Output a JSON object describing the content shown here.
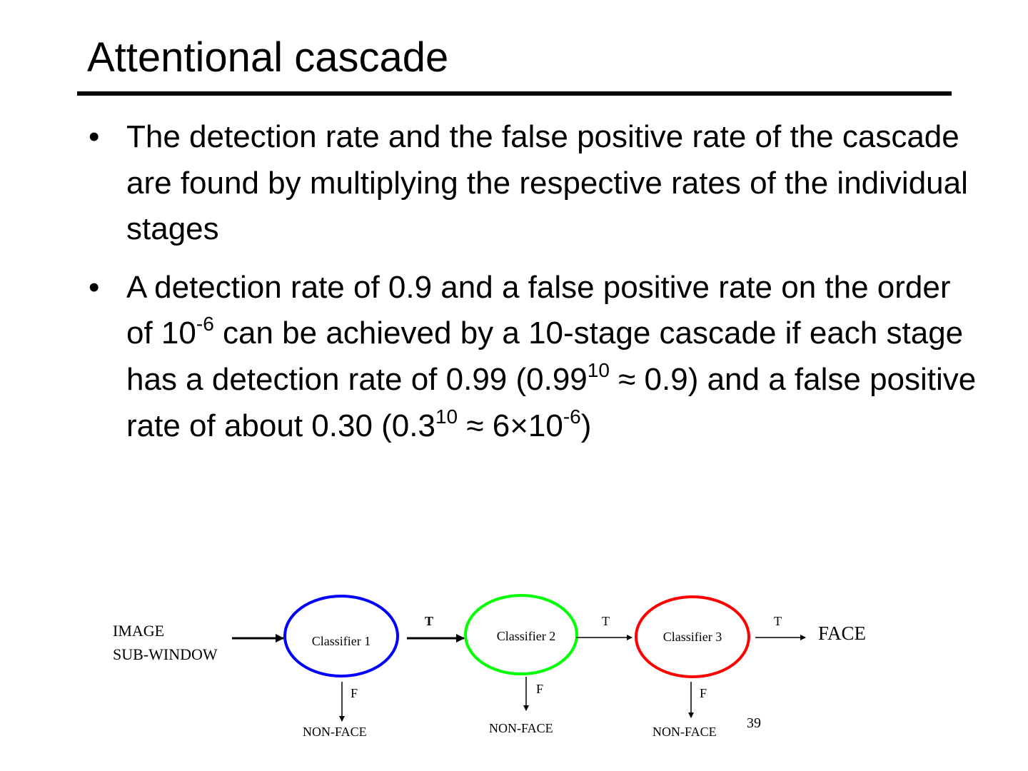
{
  "title": "Attentional cascade",
  "bullets": [
    {
      "text": "The detection rate and the false positive rate of the cascade are found by multiplying the respective rates of the individual stages"
    },
    {
      "p1": "A detection rate of 0.9 and a false positive rate on the order of 10",
      "s1": "-6",
      "p2": " can be achieved by a 10-stage cascade if each stage has a detection rate of 0.99 (0.99",
      "s2": "10",
      "p3": " ≈ 0.9) and a false positive rate of about 0.30 (0.3",
      "s3": "10",
      "p4": " ≈ 6×10",
      "s4": "-6",
      "p5": ")"
    }
  ],
  "diagram": {
    "input_line1": "IMAGE",
    "input_line2": "SUB-WINDOW",
    "classifiers": [
      "Classifier 1",
      "Classifier 2",
      "Classifier 3"
    ],
    "colors": [
      "#0000ff",
      "#00ff00",
      "#ff0000"
    ],
    "true_label": "T",
    "false_label": "F",
    "output": "FACE",
    "reject": "NON-FACE"
  },
  "page_number": "39"
}
